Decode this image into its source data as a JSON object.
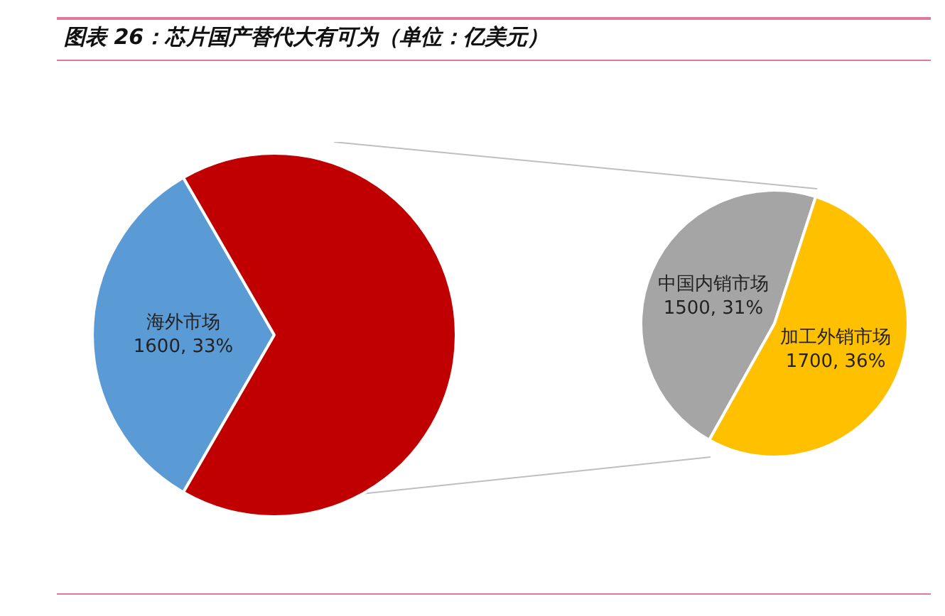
{
  "chart_data": [
    {
      "type": "pie",
      "title": "图表 26：芯片国产替代大有可为（单位：亿美元）",
      "categories": [
        "海外市场",
        null
      ],
      "values": [
        1600,
        3200
      ],
      "colors": [
        "#5b9bd5",
        "#c00000"
      ],
      "value_labels": [
        "1600, 33%",
        null
      ]
    },
    {
      "type": "pie",
      "categories": [
        "中国内销市场",
        "加工外销市场"
      ],
      "values": [
        1500,
        1700
      ],
      "colors": [
        "#a5a5a5",
        "#ffc000"
      ],
      "value_labels": [
        "1500, 31%",
        "1700, 36%"
      ]
    }
  ]
}
